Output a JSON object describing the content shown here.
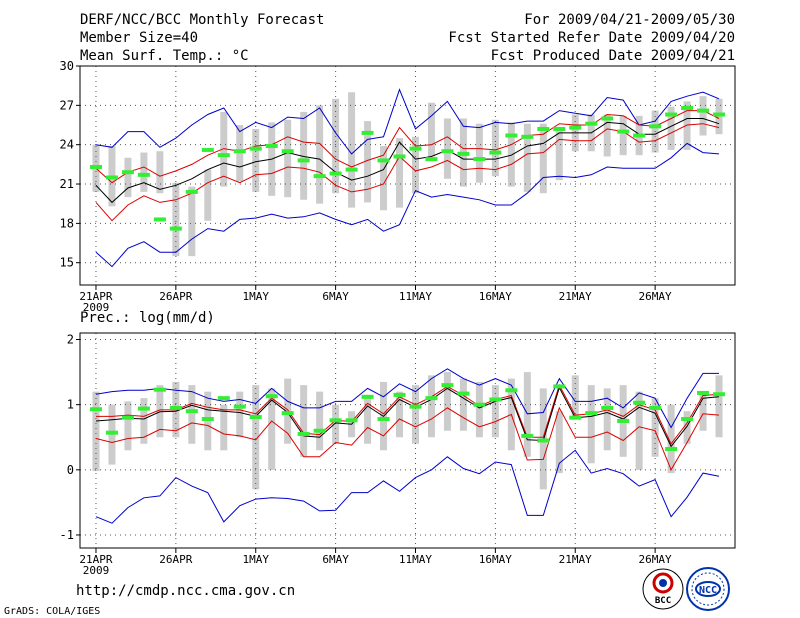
{
  "header": {
    "title": "DERF/NCC/BCC Monthly Forecast",
    "member_size": "Member Size=40",
    "variable": "Mean Surf. Temp.: °C",
    "period": "For 2009/04/21-2009/05/30",
    "refer_date": "Fcst Started Refer Date 2009/04/20",
    "produced_date": "Fcst Produced Date 2009/04/21"
  },
  "footer": {
    "url": "http://cmdp.ncc.cma.gov.cn",
    "credit": "GrADS: COLA/IGES",
    "logo_bcc": "BCC",
    "logo_ncc": "NCC"
  },
  "colors": {
    "box": "#cccccc",
    "median": "#33ee33",
    "mean": "#000000",
    "spread": "#dd0000",
    "extreme": "#0000cc",
    "grid": "#555555"
  },
  "chart_data": [
    {
      "type": "box-plume",
      "title": "Mean Surf. Temp.: °C",
      "x_tick_labels": [
        "21APR",
        "26APR",
        "1MAY",
        "6MAY",
        "11MAY",
        "16MAY",
        "21MAY",
        "26MAY"
      ],
      "x_tick_days": [
        1,
        6,
        11,
        16,
        21,
        26,
        31,
        36
      ],
      "year_label": "2009",
      "days": 40,
      "ylim": [
        13.3,
        30
      ],
      "y_ticks": [
        15,
        18,
        21,
        24,
        27,
        30
      ],
      "series": {
        "box_low": [
          20.4,
          19.3,
          20.0,
          20.4,
          20.3,
          15.5,
          15.5,
          18.2,
          20.8,
          21.2,
          20.4,
          20.1,
          20.0,
          19.8,
          19.5,
          20.3,
          19.2,
          19.6,
          19.0,
          19.2,
          20.3,
          23.1,
          21.4,
          20.8,
          21.1,
          21.6,
          20.8,
          20.4,
          20.3,
          21.3,
          23.5,
          23.5,
          23.1,
          23.2,
          23.2,
          23.4,
          23.6,
          23.6,
          24.7,
          24.8
        ],
        "box_high": [
          24.0,
          23.9,
          23.0,
          23.4,
          23.5,
          21.1,
          20.8,
          22.1,
          26.5,
          25.5,
          25.2,
          25.7,
          25.9,
          26.5,
          27.0,
          27.5,
          28.0,
          25.8,
          23.9,
          24.5,
          24.6,
          27.2,
          26.0,
          26.0,
          25.6,
          25.9,
          25.7,
          25.6,
          25.6,
          25.1,
          26.3,
          26.3,
          26.3,
          26.2,
          26.2,
          26.6,
          26.9,
          27.3,
          27.7,
          27.5
        ],
        "median": [
          22.3,
          21.5,
          21.9,
          21.7,
          18.3,
          17.6,
          20.4,
          23.6,
          23.2,
          23.5,
          23.7,
          23.9,
          23.5,
          22.8,
          21.6,
          21.8,
          22.1,
          24.9,
          22.8,
          23.1,
          23.7,
          22.9,
          23.5,
          23.3,
          22.9,
          23.4,
          24.7,
          24.6,
          25.2,
          25.2,
          25.3,
          25.6,
          26.0,
          25.0,
          24.7,
          25.4,
          26.3,
          26.8,
          26.6,
          26.3
        ],
        "mean": [
          20.9,
          19.6,
          20.7,
          21.1,
          20.6,
          20.9,
          21.4,
          22.1,
          22.6,
          22.3,
          22.7,
          22.9,
          23.4,
          23.1,
          22.9,
          21.9,
          21.3,
          21.6,
          22.1,
          24.2,
          22.9,
          23.1,
          23.6,
          22.9,
          22.9,
          22.9,
          23.2,
          23.9,
          24.1,
          24.9,
          24.9,
          24.9,
          25.7,
          25.6,
          24.8,
          24.8,
          25.4,
          26.0,
          26.0,
          25.6
        ],
        "spread_low": [
          19.6,
          18.2,
          19.4,
          20.1,
          19.6,
          19.8,
          20.3,
          21.1,
          21.6,
          21.1,
          21.7,
          21.8,
          22.3,
          22.2,
          21.9,
          20.9,
          20.4,
          20.6,
          21.0,
          23.1,
          22.0,
          22.3,
          22.8,
          22.1,
          22.2,
          22.1,
          22.5,
          23.3,
          23.4,
          24.4,
          24.3,
          24.3,
          25.2,
          25.0,
          24.2,
          24.3,
          24.9,
          25.5,
          25.6,
          25.3
        ],
        "spread_high": [
          22.2,
          21.1,
          21.9,
          22.3,
          21.6,
          22.0,
          22.5,
          23.2,
          23.7,
          23.5,
          23.9,
          24.0,
          24.6,
          24.2,
          24.1,
          22.9,
          22.3,
          22.8,
          23.2,
          25.3,
          23.9,
          24.0,
          24.6,
          23.7,
          23.7,
          23.6,
          24.0,
          24.7,
          24.8,
          25.6,
          25.5,
          25.5,
          26.3,
          26.2,
          25.5,
          25.4,
          26.0,
          26.6,
          26.6,
          26.0
        ],
        "max": [
          24.0,
          23.8,
          25.0,
          25.0,
          23.8,
          24.5,
          25.5,
          26.3,
          26.8,
          25.0,
          25.7,
          25.3,
          26.1,
          26.0,
          26.8,
          24.9,
          23.3,
          24.4,
          24.6,
          28.2,
          25.2,
          26.2,
          27.3,
          25.4,
          25.3,
          25.7,
          25.6,
          25.8,
          25.8,
          26.6,
          26.4,
          26.2,
          27.6,
          27.4,
          25.5,
          25.8,
          27.3,
          27.7,
          28.0,
          27.5
        ],
        "min": [
          15.8,
          14.7,
          16.1,
          16.6,
          15.8,
          15.8,
          16.8,
          17.6,
          17.4,
          18.3,
          18.4,
          18.7,
          18.4,
          18.5,
          18.8,
          18.3,
          17.9,
          18.3,
          17.4,
          17.9,
          20.5,
          20.0,
          20.2,
          20.0,
          19.8,
          19.4,
          19.4,
          20.3,
          21.5,
          21.6,
          21.5,
          21.7,
          22.3,
          22.2,
          22.2,
          22.2,
          23.0,
          24.1,
          23.4,
          23.3
        ]
      }
    },
    {
      "type": "box-plume",
      "title": "Prec.: log(mm/d)",
      "x_tick_labels": [
        "21APR",
        "26APR",
        "1MAY",
        "6MAY",
        "11MAY",
        "16MAY",
        "21MAY",
        "26MAY"
      ],
      "x_tick_days": [
        1,
        6,
        11,
        16,
        21,
        26,
        31,
        36
      ],
      "year_label": "2009",
      "days": 40,
      "ylim": [
        -1.2,
        2.1
      ],
      "y_ticks": [
        -1,
        0,
        1,
        2
      ],
      "series": {
        "box_low": [
          -0.02,
          0.08,
          0.3,
          0.4,
          0.5,
          0.5,
          0.4,
          0.3,
          0.3,
          0.5,
          -0.3,
          0.0,
          0.4,
          0.2,
          0.3,
          0.4,
          0.5,
          0.4,
          0.3,
          0.5,
          0.4,
          0.5,
          0.6,
          0.6,
          0.5,
          0.5,
          0.3,
          0.2,
          -0.3,
          -0.05,
          0.8,
          0.1,
          0.3,
          0.2,
          0.0,
          0.2,
          -0.05,
          0.4,
          0.6,
          0.5
        ],
        "box_high": [
          1.2,
          1.0,
          1.05,
          1.1,
          1.3,
          1.35,
          1.3,
          1.2,
          1.0,
          1.2,
          1.3,
          1.25,
          1.4,
          1.3,
          1.2,
          1.0,
          0.9,
          1.15,
          1.35,
          1.2,
          1.3,
          1.45,
          1.5,
          1.4,
          1.35,
          1.3,
          1.4,
          1.5,
          1.25,
          0.9,
          1.45,
          1.3,
          1.25,
          1.3,
          1.2,
          1.1,
          1.0,
          0.9,
          1.2,
          1.45
        ],
        "median": [
          0.93,
          0.57,
          0.8,
          0.94,
          1.23,
          0.95,
          0.9,
          0.78,
          1.1,
          0.97,
          0.81,
          1.13,
          0.87,
          0.55,
          0.6,
          0.76,
          0.76,
          1.12,
          0.78,
          1.15,
          0.97,
          1.1,
          1.3,
          1.17,
          1.0,
          1.08,
          1.22,
          0.52,
          0.45,
          1.28,
          0.8,
          0.87,
          0.95,
          0.75,
          1.03,
          0.95,
          0.32,
          0.78,
          1.18,
          1.16
        ],
        "mean": [
          0.75,
          0.77,
          0.79,
          0.78,
          0.89,
          0.9,
          0.99,
          0.92,
          0.9,
          0.88,
          0.82,
          1.07,
          0.88,
          0.52,
          0.5,
          0.72,
          0.7,
          0.98,
          0.82,
          1.08,
          0.96,
          1.08,
          1.25,
          1.1,
          0.95,
          1.05,
          1.11,
          0.46,
          0.45,
          1.26,
          0.8,
          0.82,
          0.88,
          0.78,
          0.96,
          0.87,
          0.36,
          0.67,
          1.1,
          1.12
        ],
        "spread_low": [
          0.48,
          0.42,
          0.48,
          0.5,
          0.62,
          0.6,
          0.72,
          0.68,
          0.55,
          0.52,
          0.46,
          0.75,
          0.56,
          0.2,
          0.2,
          0.42,
          0.38,
          0.65,
          0.52,
          0.78,
          0.66,
          0.78,
          0.95,
          0.8,
          0.66,
          0.74,
          0.85,
          0.15,
          0.16,
          0.95,
          0.5,
          0.5,
          0.58,
          0.45,
          0.66,
          0.6,
          0.0,
          0.42,
          0.86,
          0.84
        ],
        "spread_high": [
          0.82,
          0.82,
          0.84,
          0.82,
          0.92,
          0.92,
          1.02,
          0.96,
          0.92,
          0.92,
          0.86,
          1.1,
          0.92,
          0.56,
          0.54,
          0.76,
          0.74,
          1.02,
          0.86,
          1.12,
          1.0,
          1.12,
          1.28,
          1.14,
          0.98,
          1.08,
          1.14,
          0.5,
          0.5,
          1.3,
          0.84,
          0.86,
          0.92,
          0.82,
          1.0,
          0.92,
          0.4,
          0.72,
          1.14,
          1.16
        ],
        "max": [
          1.16,
          1.2,
          1.22,
          1.22,
          1.25,
          1.22,
          1.2,
          1.1,
          1.05,
          1.08,
          1.02,
          1.25,
          1.05,
          0.95,
          0.95,
          1.05,
          1.05,
          1.25,
          1.12,
          1.32,
          1.2,
          1.4,
          1.55,
          1.4,
          1.3,
          1.4,
          1.3,
          0.86,
          0.88,
          1.4,
          1.05,
          1.05,
          1.1,
          0.95,
          1.18,
          1.1,
          0.65,
          1.1,
          1.48,
          1.48
        ],
        "min": [
          -0.72,
          -0.82,
          -0.58,
          -0.43,
          -0.4,
          -0.12,
          -0.25,
          -0.35,
          -0.8,
          -0.55,
          -0.45,
          -0.43,
          -0.44,
          -0.48,
          -0.63,
          -0.62,
          -0.35,
          -0.35,
          -0.17,
          -0.33,
          -0.12,
          0.0,
          0.2,
          0.02,
          -0.06,
          0.12,
          0.08,
          -0.7,
          -0.7,
          0.1,
          0.3,
          -0.05,
          0.02,
          -0.06,
          -0.25,
          -0.15,
          -0.72,
          -0.42,
          -0.05,
          -0.1
        ]
      }
    }
  ]
}
